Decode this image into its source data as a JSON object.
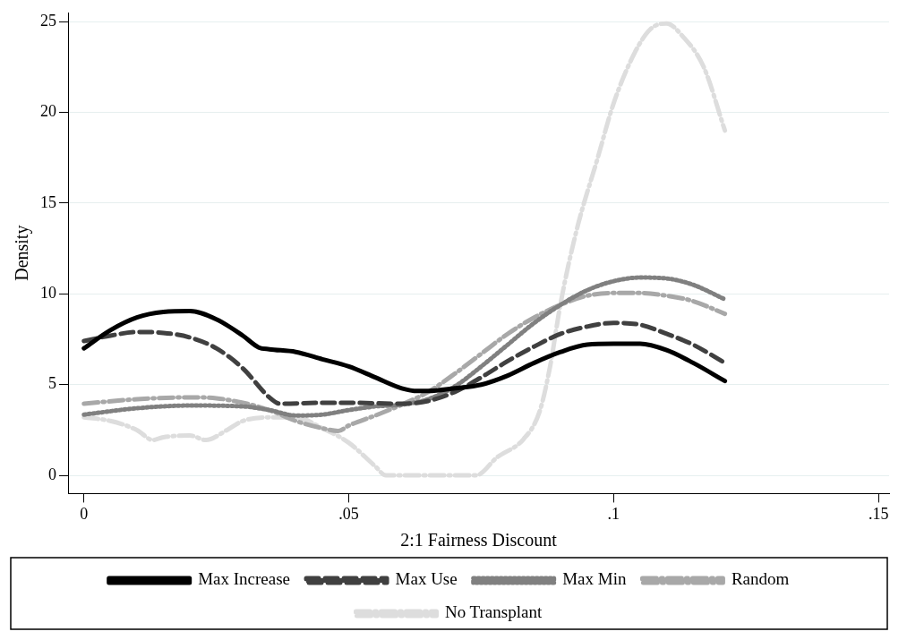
{
  "chart_data": {
    "type": "line",
    "xlabel": "2:1 Fairness Discount",
    "ylabel": "Density",
    "xlim": [
      -0.003,
      0.152
    ],
    "xticks": [
      0,
      {
        "value": 0.05,
        "label": ".05"
      },
      {
        "value": 0.1,
        "label": ".1"
      },
      {
        "value": 0.15,
        "label": ".15"
      }
    ],
    "ylim": [
      -1,
      25.5
    ],
    "yticks": [
      0,
      5,
      10,
      15,
      20,
      25
    ],
    "grid": "y",
    "legend": "bottom",
    "marker": "none",
    "series": [
      {
        "name": "Max Increase",
        "color": "#000000",
        "line_style": "solid",
        "x": [
          0,
          0.005,
          0.01,
          0.015,
          0.02,
          0.025,
          0.03,
          0.033,
          0.035,
          0.04,
          0.045,
          0.05,
          0.055,
          0.06,
          0.063,
          0.065,
          0.07,
          0.075,
          0.08,
          0.085,
          0.09,
          0.095,
          0.1,
          0.105,
          0.11,
          0.115,
          0.121
        ],
        "values": [
          7.0,
          8.0,
          8.7,
          9.0,
          9.05,
          8.6,
          7.7,
          7.05,
          6.95,
          6.8,
          6.4,
          6.0,
          5.4,
          4.8,
          4.65,
          4.65,
          4.8,
          5.0,
          5.5,
          6.2,
          6.8,
          7.2,
          7.25,
          7.25,
          6.9,
          6.2,
          5.2
        ]
      },
      {
        "name": "Max Use",
        "color": "#404040",
        "line_style": "dashed",
        "x": [
          0,
          0.005,
          0.01,
          0.015,
          0.02,
          0.025,
          0.03,
          0.035,
          0.037,
          0.045,
          0.05,
          0.06,
          0.065,
          0.07,
          0.075,
          0.08,
          0.085,
          0.09,
          0.095,
          0.1,
          0.105,
          0.11,
          0.115,
          0.121
        ],
        "values": [
          7.4,
          7.7,
          7.9,
          7.85,
          7.6,
          7.0,
          5.9,
          4.3,
          3.95,
          4.0,
          4.0,
          3.95,
          4.1,
          4.6,
          5.4,
          6.3,
          7.1,
          7.8,
          8.2,
          8.4,
          8.3,
          7.8,
          7.2,
          6.2
        ]
      },
      {
        "name": "Max Min",
        "color": "#808080",
        "line_style": "dotted",
        "x": [
          0,
          0.01,
          0.02,
          0.03,
          0.035,
          0.04,
          0.045,
          0.05,
          0.055,
          0.06,
          0.065,
          0.07,
          0.075,
          0.08,
          0.085,
          0.09,
          0.095,
          0.1,
          0.105,
          0.11,
          0.115,
          0.121
        ],
        "values": [
          3.35,
          3.7,
          3.85,
          3.8,
          3.6,
          3.3,
          3.35,
          3.6,
          3.8,
          3.9,
          4.2,
          4.9,
          6.0,
          7.2,
          8.4,
          9.4,
          10.2,
          10.7,
          10.9,
          10.85,
          10.5,
          9.7
        ]
      },
      {
        "name": "Random",
        "color": "#a8a8a8",
        "line_style": "dashdot",
        "x": [
          0,
          0.01,
          0.02,
          0.025,
          0.03,
          0.035,
          0.04,
          0.045,
          0.048,
          0.05,
          0.055,
          0.06,
          0.065,
          0.07,
          0.075,
          0.08,
          0.085,
          0.09,
          0.095,
          0.1,
          0.105,
          0.11,
          0.115,
          0.121
        ],
        "values": [
          3.95,
          4.2,
          4.3,
          4.25,
          4.0,
          3.6,
          3.0,
          2.6,
          2.45,
          2.75,
          3.3,
          3.9,
          4.6,
          5.6,
          6.7,
          7.8,
          8.7,
          9.4,
          9.9,
          10.05,
          10.05,
          9.9,
          9.6,
          8.9
        ]
      },
      {
        "name": "No Transplant",
        "color": "#dddddd",
        "line_style": "dashdot",
        "x": [
          0,
          0.005,
          0.01,
          0.013,
          0.015,
          0.02,
          0.023,
          0.027,
          0.03,
          0.035,
          0.04,
          0.045,
          0.05,
          0.055,
          0.057,
          0.065,
          0.074,
          0.078,
          0.083,
          0.086,
          0.088,
          0.09,
          0.093,
          0.097,
          0.1,
          0.104,
          0.107,
          0.11,
          0.113,
          0.117,
          0.121
        ],
        "values": [
          3.2,
          3.0,
          2.5,
          1.95,
          2.1,
          2.2,
          1.95,
          2.5,
          3.0,
          3.2,
          3.2,
          2.6,
          1.8,
          0.5,
          0,
          0,
          0,
          1.0,
          2.0,
          3.5,
          6,
          9.5,
          13.5,
          17.5,
          20.5,
          23.3,
          24.6,
          24.9,
          24.2,
          22.5,
          19.0
        ]
      }
    ]
  }
}
